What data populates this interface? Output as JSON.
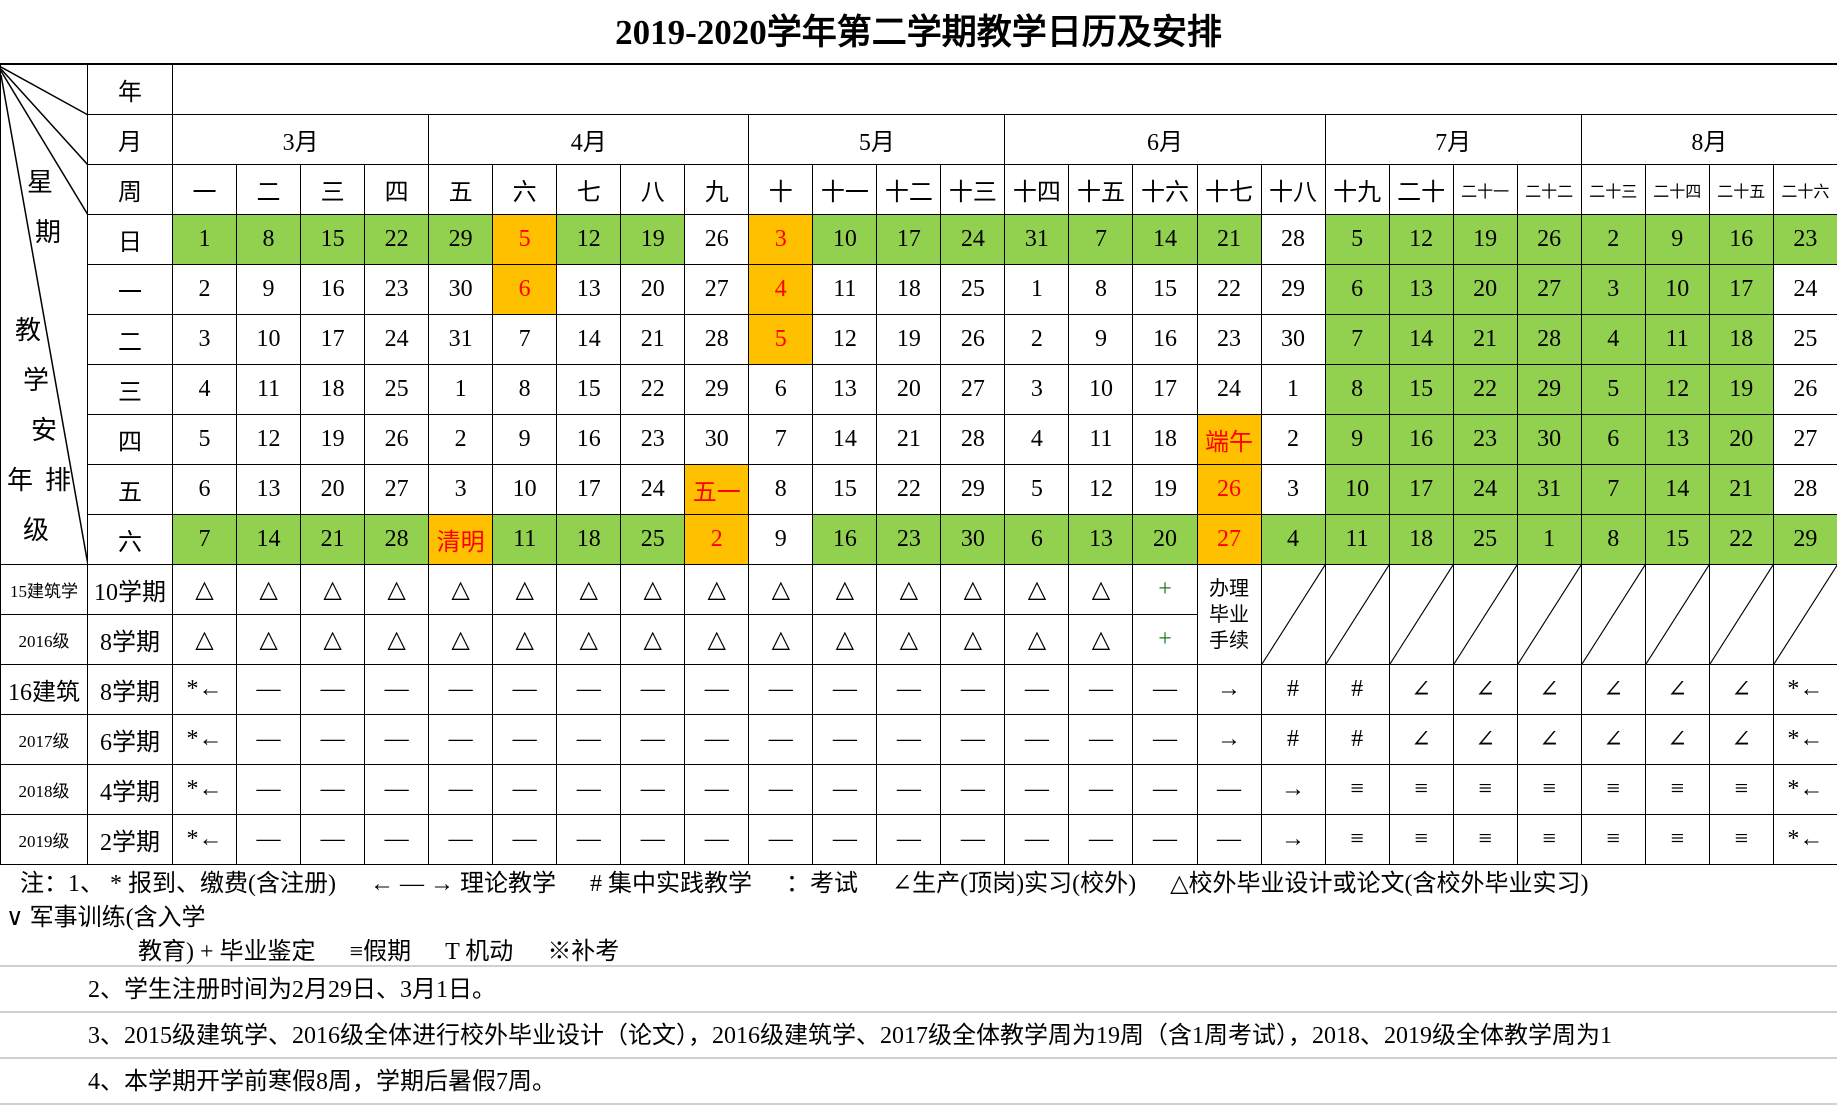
{
  "title": "2019-2020学年第二学期教学日历及安排",
  "header": {
    "year_label": "年",
    "month_label": "月",
    "week_label": "周"
  },
  "corner_labels": [
    "星",
    "期",
    "教",
    "学",
    "安",
    "年",
    "排",
    "级"
  ],
  "colors": {
    "workday_green": "#92d050",
    "holiday_orange": "#ffc000",
    "holiday_text_red": "#ff0000"
  },
  "months": [
    {
      "label": "3月",
      "span": 4
    },
    {
      "label": "4月",
      "span": 5
    },
    {
      "label": "5月",
      "span": 4
    },
    {
      "label": "6月",
      "span": 5
    },
    {
      "label": "7月",
      "span": 4
    },
    {
      "label": "8月",
      "span": 4
    }
  ],
  "weeks": [
    "一",
    "二",
    "三",
    "四",
    "五",
    "六",
    "七",
    "八",
    "九",
    "十",
    "十一",
    "十二",
    "十三",
    "十四",
    "十五",
    "十六",
    "十七",
    "十八",
    "十九",
    "二十",
    "二十一",
    "二十二",
    "二十三",
    "二十四",
    "二十五",
    "二十六"
  ],
  "days": [
    {
      "label": "日",
      "cells": [
        [
          "1",
          "g"
        ],
        [
          "8",
          "g"
        ],
        [
          "15",
          "g"
        ],
        [
          "22",
          "g"
        ],
        [
          "29",
          "g"
        ],
        [
          "5",
          "o"
        ],
        [
          "12",
          "g"
        ],
        [
          "19",
          "g"
        ],
        [
          "26",
          ""
        ],
        [
          "3",
          "o"
        ],
        [
          "10",
          "g"
        ],
        [
          "17",
          "g"
        ],
        [
          "24",
          "g"
        ],
        [
          "31",
          "g"
        ],
        [
          "7",
          "g"
        ],
        [
          "14",
          "g"
        ],
        [
          "21",
          "g"
        ],
        [
          "28",
          ""
        ],
        [
          "5",
          "g"
        ],
        [
          "12",
          "g"
        ],
        [
          "19",
          "g"
        ],
        [
          "26",
          "g"
        ],
        [
          "2",
          "g"
        ],
        [
          "9",
          "g"
        ],
        [
          "16",
          "g"
        ],
        [
          "23",
          "g"
        ]
      ]
    },
    {
      "label": "一",
      "cells": [
        [
          "2",
          ""
        ],
        [
          "9",
          ""
        ],
        [
          "16",
          ""
        ],
        [
          "23",
          ""
        ],
        [
          "30",
          ""
        ],
        [
          "6",
          "o"
        ],
        [
          "13",
          ""
        ],
        [
          "20",
          ""
        ],
        [
          "27",
          ""
        ],
        [
          "4",
          "o"
        ],
        [
          "11",
          ""
        ],
        [
          "18",
          ""
        ],
        [
          "25",
          ""
        ],
        [
          "1",
          ""
        ],
        [
          "8",
          ""
        ],
        [
          "15",
          ""
        ],
        [
          "22",
          ""
        ],
        [
          "29",
          ""
        ],
        [
          "6",
          "g"
        ],
        [
          "13",
          "g"
        ],
        [
          "20",
          "g"
        ],
        [
          "27",
          "g"
        ],
        [
          "3",
          "g"
        ],
        [
          "10",
          "g"
        ],
        [
          "17",
          "g"
        ],
        [
          "24",
          ""
        ]
      ]
    },
    {
      "label": "二",
      "cells": [
        [
          "3",
          ""
        ],
        [
          "10",
          ""
        ],
        [
          "17",
          ""
        ],
        [
          "24",
          ""
        ],
        [
          "31",
          ""
        ],
        [
          "7",
          ""
        ],
        [
          "14",
          ""
        ],
        [
          "21",
          ""
        ],
        [
          "28",
          ""
        ],
        [
          "5",
          "o"
        ],
        [
          "12",
          ""
        ],
        [
          "19",
          ""
        ],
        [
          "26",
          ""
        ],
        [
          "2",
          ""
        ],
        [
          "9",
          ""
        ],
        [
          "16",
          ""
        ],
        [
          "23",
          ""
        ],
        [
          "30",
          ""
        ],
        [
          "7",
          "g"
        ],
        [
          "14",
          "g"
        ],
        [
          "21",
          "g"
        ],
        [
          "28",
          "g"
        ],
        [
          "4",
          "g"
        ],
        [
          "11",
          "g"
        ],
        [
          "18",
          "g"
        ],
        [
          "25",
          ""
        ]
      ]
    },
    {
      "label": "三",
      "cells": [
        [
          "4",
          ""
        ],
        [
          "11",
          ""
        ],
        [
          "18",
          ""
        ],
        [
          "25",
          ""
        ],
        [
          "1",
          ""
        ],
        [
          "8",
          ""
        ],
        [
          "15",
          ""
        ],
        [
          "22",
          ""
        ],
        [
          "29",
          ""
        ],
        [
          "6",
          ""
        ],
        [
          "13",
          ""
        ],
        [
          "20",
          ""
        ],
        [
          "27",
          ""
        ],
        [
          "3",
          ""
        ],
        [
          "10",
          ""
        ],
        [
          "17",
          ""
        ],
        [
          "24",
          ""
        ],
        [
          "1",
          ""
        ],
        [
          "8",
          "g"
        ],
        [
          "15",
          "g"
        ],
        [
          "22",
          "g"
        ],
        [
          "29",
          "g"
        ],
        [
          "5",
          "g"
        ],
        [
          "12",
          "g"
        ],
        [
          "19",
          "g"
        ],
        [
          "26",
          ""
        ]
      ]
    },
    {
      "label": "四",
      "cells": [
        [
          "5",
          ""
        ],
        [
          "12",
          ""
        ],
        [
          "19",
          ""
        ],
        [
          "26",
          ""
        ],
        [
          "2",
          ""
        ],
        [
          "9",
          ""
        ],
        [
          "16",
          ""
        ],
        [
          "23",
          ""
        ],
        [
          "30",
          ""
        ],
        [
          "7",
          ""
        ],
        [
          "14",
          ""
        ],
        [
          "21",
          ""
        ],
        [
          "28",
          ""
        ],
        [
          "4",
          ""
        ],
        [
          "11",
          ""
        ],
        [
          "18",
          ""
        ],
        [
          "端午",
          "o"
        ],
        [
          "2",
          ""
        ],
        [
          "9",
          "g"
        ],
        [
          "16",
          "g"
        ],
        [
          "23",
          "g"
        ],
        [
          "30",
          "g"
        ],
        [
          "6",
          "g"
        ],
        [
          "13",
          "g"
        ],
        [
          "20",
          "g"
        ],
        [
          "27",
          ""
        ]
      ]
    },
    {
      "label": "五",
      "cells": [
        [
          "6",
          ""
        ],
        [
          "13",
          ""
        ],
        [
          "20",
          ""
        ],
        [
          "27",
          ""
        ],
        [
          "3",
          ""
        ],
        [
          "10",
          ""
        ],
        [
          "17",
          ""
        ],
        [
          "24",
          ""
        ],
        [
          "五一",
          "o"
        ],
        [
          "8",
          ""
        ],
        [
          "15",
          ""
        ],
        [
          "22",
          ""
        ],
        [
          "29",
          ""
        ],
        [
          "5",
          ""
        ],
        [
          "12",
          ""
        ],
        [
          "19",
          ""
        ],
        [
          "26",
          "o"
        ],
        [
          "3",
          ""
        ],
        [
          "10",
          "g"
        ],
        [
          "17",
          "g"
        ],
        [
          "24",
          "g"
        ],
        [
          "31",
          "g"
        ],
        [
          "7",
          "g"
        ],
        [
          "14",
          "g"
        ],
        [
          "21",
          "g"
        ],
        [
          "28",
          ""
        ]
      ]
    },
    {
      "label": "六",
      "cells": [
        [
          "7",
          "g"
        ],
        [
          "14",
          "g"
        ],
        [
          "21",
          "g"
        ],
        [
          "28",
          "g"
        ],
        [
          "清明",
          "o"
        ],
        [
          "11",
          "g"
        ],
        [
          "18",
          "g"
        ],
        [
          "25",
          "g"
        ],
        [
          "2",
          "o"
        ],
        [
          "9",
          ""
        ],
        [
          "16",
          "g"
        ],
        [
          "23",
          "g"
        ],
        [
          "30",
          "g"
        ],
        [
          "6",
          "g"
        ],
        [
          "13",
          "g"
        ],
        [
          "20",
          "g"
        ],
        [
          "27",
          "o"
        ],
        [
          "4",
          "g"
        ],
        [
          "11",
          "g"
        ],
        [
          "18",
          "g"
        ],
        [
          "25",
          "g"
        ],
        [
          "1",
          "g"
        ],
        [
          "8",
          "g"
        ],
        [
          "15",
          "g"
        ],
        [
          "22",
          "g"
        ],
        [
          "29",
          "g"
        ]
      ]
    }
  ],
  "classes": [
    {
      "grade": "15建筑学",
      "term": "10学期",
      "cells": [
        "△",
        "△",
        "△",
        "△",
        "△",
        "△",
        "△",
        "△",
        "△",
        "△",
        "△",
        "△",
        "△",
        "△",
        "△",
        "+",
        {
          "text": "办理毕业手续",
          "rowspan": 2
        },
        {
          "diag": true
        },
        {
          "diag": true
        },
        {
          "diag": true
        },
        {
          "diag": true
        },
        {
          "diag": true
        },
        {
          "diag": true
        },
        {
          "diag": true
        },
        {
          "diag": true
        },
        {
          "diag": true
        }
      ]
    },
    {
      "grade": "2016级",
      "term": "8学期",
      "cells": [
        "△",
        "△",
        "△",
        "△",
        "△",
        "△",
        "△",
        "△",
        "△",
        "△",
        "△",
        "△",
        "△",
        "△",
        "△",
        "+"
      ]
    },
    {
      "grade": "16建筑",
      "term": "8学期",
      "cells": [
        "*←",
        "—",
        "—",
        "—",
        "—",
        "—",
        "—",
        "—",
        "—",
        "—",
        "—",
        "—",
        "—",
        "—",
        "—",
        "—",
        "→",
        "#",
        "#",
        "∠",
        "∠",
        "∠",
        "∠",
        "∠",
        "∠",
        "*←"
      ]
    },
    {
      "grade": "2017级",
      "term": "6学期",
      "cells": [
        "*←",
        "—",
        "—",
        "—",
        "—",
        "—",
        "—",
        "—",
        "—",
        "—",
        "—",
        "—",
        "—",
        "—",
        "—",
        "—",
        "→",
        "#",
        "#",
        "∠",
        "∠",
        "∠",
        "∠",
        "∠",
        "∠",
        "*←"
      ]
    },
    {
      "grade": "2018级",
      "term": "4学期",
      "cells": [
        "*←",
        "—",
        "—",
        "—",
        "—",
        "—",
        "—",
        "—",
        "—",
        "—",
        "—",
        "—",
        "—",
        "—",
        "—",
        "—",
        "—",
        "→",
        "≡",
        "≡",
        "≡",
        "≡",
        "≡",
        "≡",
        "≡",
        "*←"
      ]
    },
    {
      "grade": "2019级",
      "term": "2学期",
      "cells": [
        "*←",
        "—",
        "—",
        "—",
        "—",
        "—",
        "—",
        "—",
        "—",
        "—",
        "—",
        "—",
        "—",
        "—",
        "—",
        "—",
        "—",
        "→",
        "≡",
        "≡",
        "≡",
        "≡",
        "≡",
        "≡",
        "≡",
        "*←"
      ]
    }
  ],
  "notes": {
    "legend_lines": [
      [
        "注：1、 * 报到、缴费(含注册)",
        "← — → 理论教学",
        "# 集中实践教学",
        "：考试",
        "∠生产(顶岗)实习(校外)",
        "△校外毕业设计或论文(含校外毕业实习)"
      ],
      [
        "∨ 军事训练(含入学"
      ],
      [
        "教育)  + 毕业鉴定",
        "≡假期",
        "T 机动",
        "※补考"
      ]
    ],
    "line2": "2、学生注册时间为2月29日、3月1日。",
    "line3": "3、2015级建筑学、2016级全体进行校外毕业设计（论文），2016级建筑学、2017级全体教学周为19周（含1周考试），2018、2019级全体教学周为1",
    "line4": "4、本学期开学前寒假8周，学期后暑假7周。"
  }
}
